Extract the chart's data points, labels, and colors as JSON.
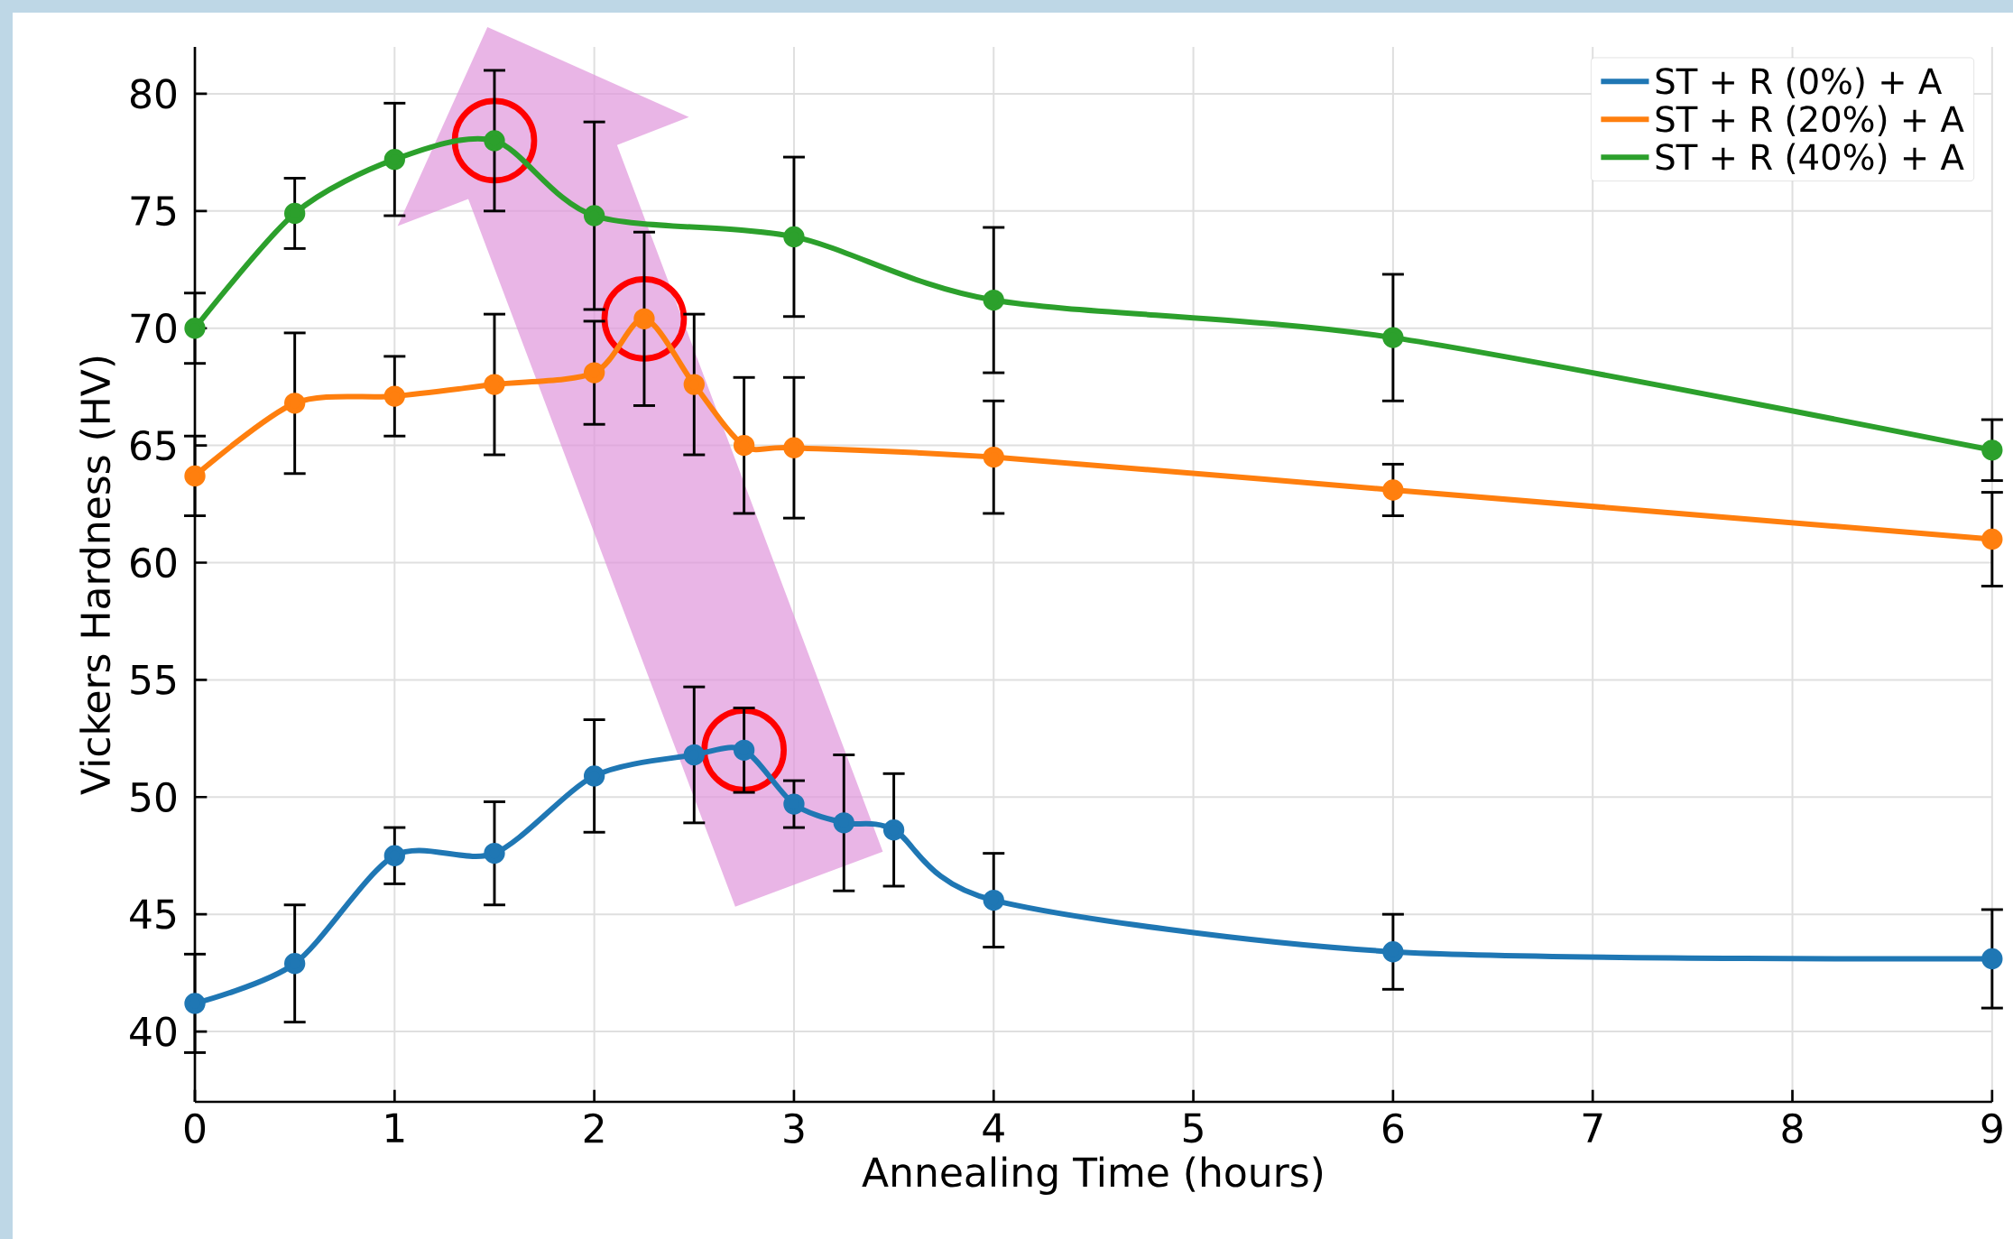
{
  "chart_data": {
    "type": "line",
    "xlabel": "Annealing Time (hours)",
    "ylabel": "Vickers Hardness (HV)",
    "xlim": [
      0,
      9
    ],
    "ylim": [
      37,
      82
    ],
    "xticks": [
      0,
      1,
      2,
      3,
      4,
      5,
      6,
      7,
      8,
      9
    ],
    "yticks": [
      40,
      45,
      50,
      55,
      60,
      65,
      70,
      75,
      80
    ],
    "grid": true,
    "legend": "top right",
    "marker": "circle",
    "line_style": "solid",
    "series": [
      {
        "name": "ST + R (0%) + A",
        "color": "#1f77b4",
        "x": [
          0,
          0.5,
          1,
          1.5,
          2,
          2.5,
          2.75,
          3,
          3.25,
          3.5,
          4,
          6,
          9
        ],
        "values": [
          41.2,
          42.9,
          47.5,
          47.6,
          50.9,
          51.8,
          52.0,
          49.7,
          48.9,
          48.6,
          45.6,
          43.4,
          43.1
        ],
        "errors": [
          2.1,
          2.5,
          1.2,
          2.2,
          2.4,
          2.9,
          1.8,
          1.0,
          2.9,
          2.4,
          2.0,
          1.6,
          2.1
        ]
      },
      {
        "name": "ST + R (20%) + A",
        "color": "#ff7f0e",
        "x": [
          0,
          0.5,
          1,
          1.5,
          2,
          2.25,
          2.5,
          2.75,
          3,
          4,
          6,
          9
        ],
        "values": [
          63.7,
          66.8,
          67.1,
          67.6,
          68.1,
          70.4,
          67.6,
          65.0,
          64.9,
          64.5,
          63.1,
          61.0
        ],
        "errors": [
          1.7,
          3.0,
          1.7,
          3.0,
          2.2,
          3.7,
          3.0,
          2.9,
          3.0,
          2.4,
          1.1,
          2.0
        ]
      },
      {
        "name": "ST + R (40%) + A",
        "color": "#2ca02c",
        "x": [
          0,
          0.5,
          1,
          1.5,
          2,
          3,
          4,
          6,
          9
        ],
        "values": [
          70.0,
          74.9,
          77.2,
          78.0,
          74.8,
          73.9,
          71.2,
          69.6,
          64.8
        ],
        "errors": [
          1.5,
          1.5,
          2.4,
          3.0,
          4.0,
          3.4,
          3.1,
          2.7,
          1.3
        ]
      }
    ]
  }
}
